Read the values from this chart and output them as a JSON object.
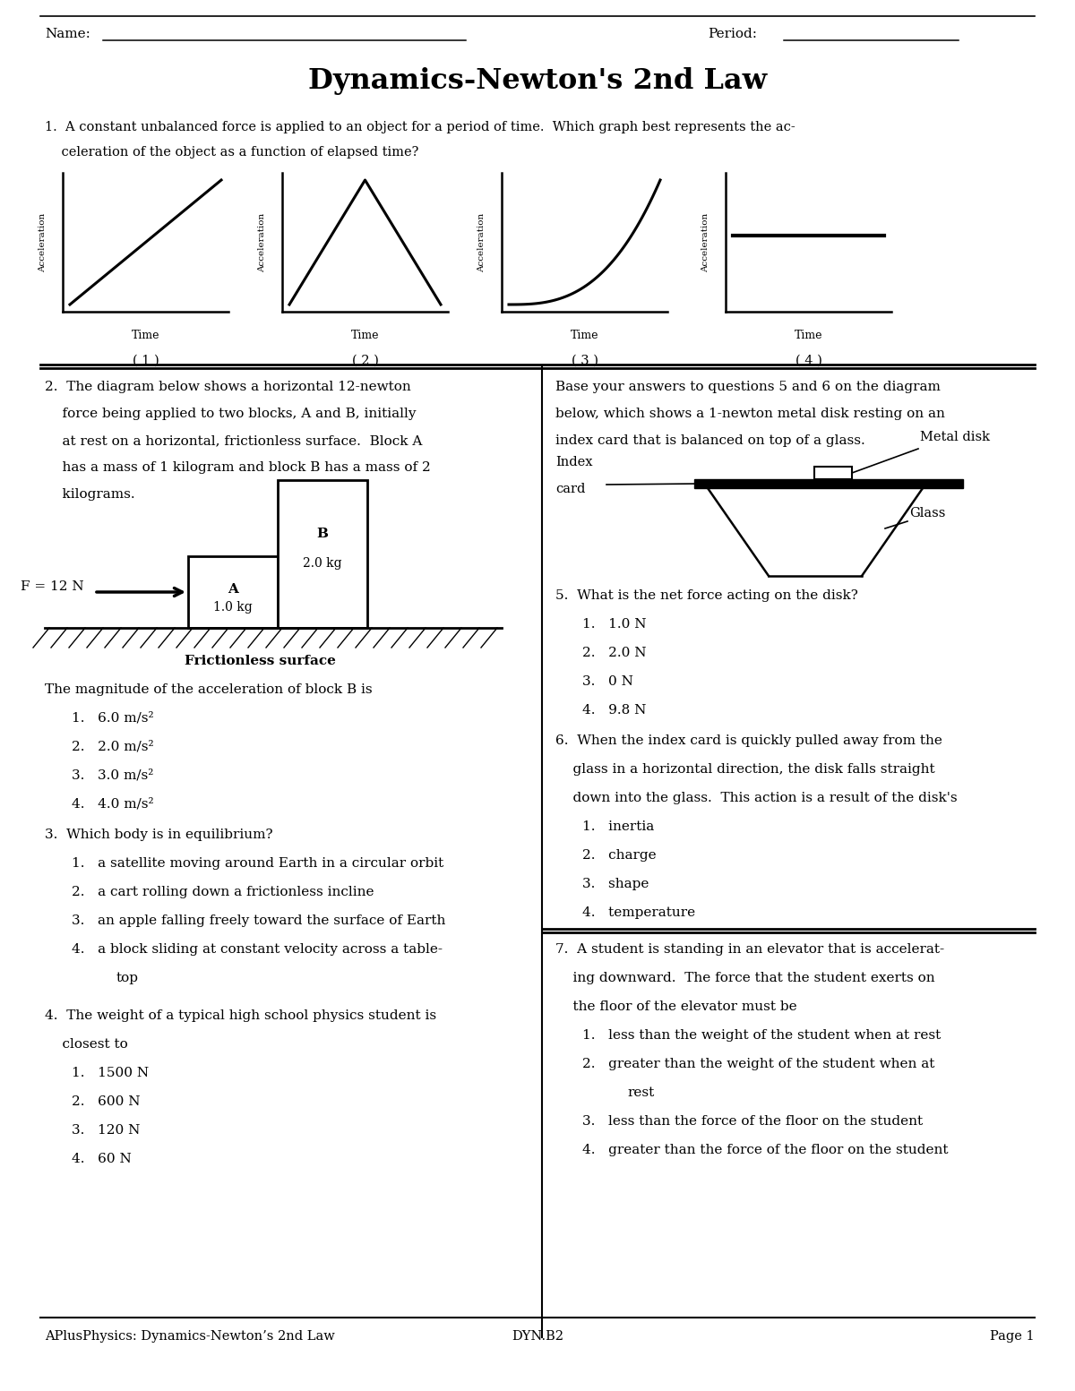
{
  "title": "Dynamics-Newton's 2nd Law",
  "bg_color": "#ffffff",
  "footer_left": "APlusPhysics: Dynamics-Newton’s 2nd Law",
  "footer_center": "DYN.B2",
  "footer_right": "Page 1",
  "q2_choices": [
    "1.   6.0 m/s²",
    "2.   2.0 m/s²",
    "3.   3.0 m/s²",
    "4.   4.0 m/s²"
  ],
  "q3_choices": [
    "1.   a satellite moving around Earth in a circular orbit",
    "2.   a cart rolling down a frictionless incline",
    "3.   an apple falling freely toward the surface of Earth",
    "4.   a block sliding at constant velocity across a table-"
  ],
  "q4_choices": [
    "1.   1500 N",
    "2.   600 N",
    "3.   120 N",
    "4.   60 N"
  ],
  "q5_choices": [
    "1.   1.0 N",
    "2.   2.0 N",
    "3.   0 N",
    "4.   9.8 N"
  ],
  "q6_choices": [
    "1.   inertia",
    "2.   charge",
    "3.   shape",
    "4.   temperature"
  ]
}
